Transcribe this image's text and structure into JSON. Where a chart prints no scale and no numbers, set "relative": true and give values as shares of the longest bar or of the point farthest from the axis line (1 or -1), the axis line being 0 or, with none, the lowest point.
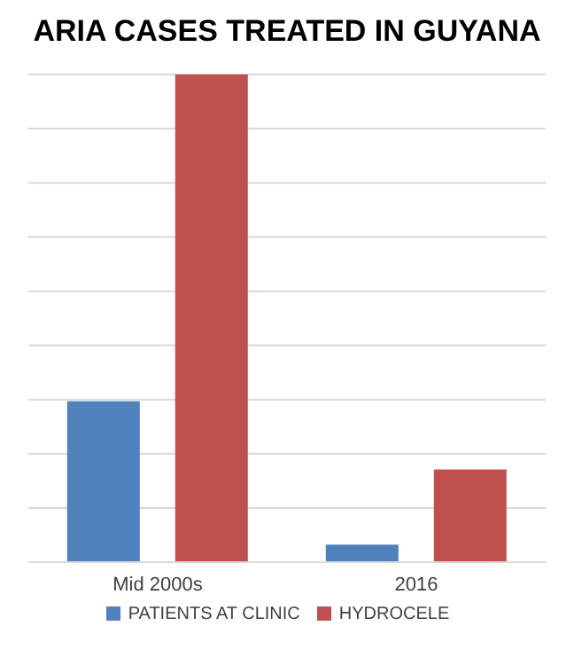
{
  "chart_data": {
    "type": "bar",
    "title": "ARIA CASES TREATED IN GUYANA",
    "categories": [
      "Mid 2000s",
      "2016"
    ],
    "relative": true,
    "grid": "y",
    "legend": "bottom",
    "series": [
      {
        "name": "PATIENTS AT CLINIC",
        "color": "#4f81bd",
        "values": [
          0.33,
          0.036
        ]
      },
      {
        "name": "HYDROCELE",
        "color": "#c0504d",
        "values": [
          1,
          0.19
        ]
      }
    ]
  }
}
